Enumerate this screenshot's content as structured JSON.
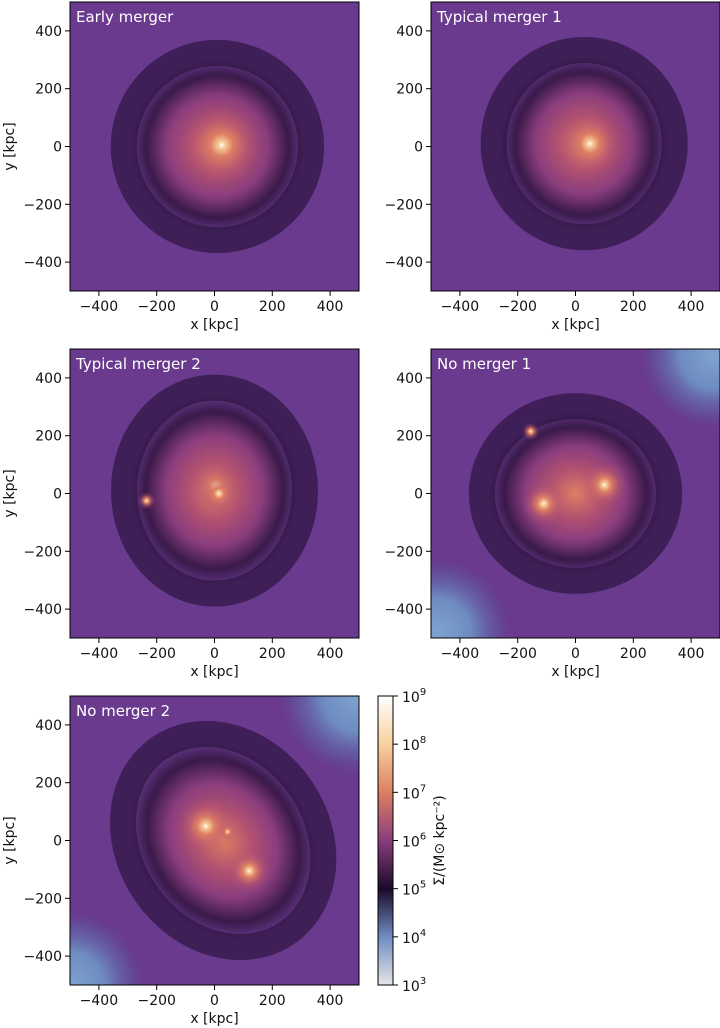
{
  "chart_data": {
    "type": "heatmap",
    "colormap": [
      "#e6e6e6",
      "#6e8cc0",
      "#1a0a2a",
      "#8a3d7d",
      "#dd7f62",
      "#f7d19e",
      "#ffffff"
    ],
    "panels": [
      {
        "title": "Early merger",
        "xlabel": "x [kpc]",
        "ylabel": "y [kpc]",
        "xlim": [
          -500,
          500
        ],
        "ylim": [
          -500,
          500
        ],
        "xticks": [
          -400,
          -200,
          0,
          200,
          400
        ],
        "yticks": [
          -400,
          -200,
          0,
          200,
          400
        ],
        "xtick_labels": [
          "−400",
          "−200",
          "0",
          "200",
          "400"
        ],
        "ytick_labels": [
          "−400",
          "−200",
          "0",
          "200",
          "400"
        ],
        "halo": {
          "cx": 10,
          "cy": 0,
          "rx": 300,
          "ry": 300,
          "angle": 0
        },
        "peaks": [
          {
            "x": 25,
            "y": 5,
            "size": 260
          }
        ],
        "cold_corners": []
      },
      {
        "title": "Typical merger 1",
        "xlabel": "x [kpc]",
        "ylabel": "",
        "xlim": [
          -500,
          500
        ],
        "ylim": [
          -500,
          500
        ],
        "xticks": [
          -400,
          -200,
          0,
          200,
          400
        ],
        "yticks": [
          -400,
          -200,
          0,
          200,
          400
        ],
        "xtick_labels": [
          "−400",
          "−200",
          "0",
          "200",
          "400"
        ],
        "ytick_labels": [
          "−400",
          "−200",
          "0",
          "200",
          "400"
        ],
        "halo": {
          "cx": 30,
          "cy": 10,
          "rx": 290,
          "ry": 300,
          "angle": 0
        },
        "peaks": [
          {
            "x": 50,
            "y": 10,
            "size": 220
          }
        ],
        "cold_corners": []
      },
      {
        "title": "Typical merger 2",
        "xlabel": "x [kpc]",
        "ylabel": "y [kpc]",
        "xlim": [
          -500,
          500
        ],
        "ylim": [
          -500,
          500
        ],
        "xticks": [
          -400,
          -200,
          0,
          200,
          400
        ],
        "yticks": [
          -400,
          -200,
          0,
          200,
          400
        ],
        "xtick_labels": [
          "−400",
          "−200",
          "0",
          "200",
          "400"
        ],
        "ytick_labels": [
          "−400",
          "−200",
          "0",
          "200",
          "400"
        ],
        "halo": {
          "cx": 0,
          "cy": 10,
          "rx": 290,
          "ry": 330,
          "angle": 0
        },
        "peaks": [
          {
            "x": 5,
            "y": 25,
            "size": 150
          },
          {
            "x": 15,
            "y": 0,
            "size": 120
          },
          {
            "x": -235,
            "y": -25,
            "size": 60
          }
        ],
        "cold_corners": []
      },
      {
        "title": "No merger 1",
        "xlabel": "x [kpc]",
        "ylabel": "",
        "xlim": [
          -500,
          500
        ],
        "ylim": [
          -500,
          500
        ],
        "xticks": [
          -400,
          -200,
          0,
          200,
          400
        ],
        "yticks": [
          -400,
          -200,
          0,
          200,
          400
        ],
        "xtick_labels": [
          "−400",
          "−200",
          "0",
          "200",
          "400"
        ],
        "ytick_labels": [
          "−400",
          "−200",
          "0",
          "200",
          "400"
        ],
        "halo": {
          "cx": 0,
          "cy": 0,
          "rx": 300,
          "ry": 280,
          "angle": 0
        },
        "peaks": [
          {
            "x": 100,
            "y": 30,
            "size": 160
          },
          {
            "x": -110,
            "y": -35,
            "size": 150
          },
          {
            "x": -155,
            "y": 215,
            "size": 60
          }
        ],
        "cold_corners": [
          {
            "x": 480,
            "y": 480,
            "r": 260
          },
          {
            "x": -480,
            "y": -480,
            "r": 260
          }
        ]
      },
      {
        "title": "No merger 2",
        "xlabel": "x [kpc]",
        "ylabel": "y [kpc]",
        "xlim": [
          -500,
          500
        ],
        "ylim": [
          -500,
          500
        ],
        "xticks": [
          -400,
          -200,
          0,
          200,
          400
        ],
        "yticks": [
          -400,
          -200,
          0,
          200,
          400
        ],
        "xtick_labels": [
          "−400",
          "−200",
          "0",
          "200",
          "400"
        ],
        "ytick_labels": [
          "−400",
          "−200",
          "0",
          "200",
          "400"
        ],
        "halo": {
          "cx": 30,
          "cy": 0,
          "rx": 300,
          "ry": 360,
          "angle": -35
        },
        "peaks": [
          {
            "x": -30,
            "y": 50,
            "size": 200
          },
          {
            "x": 45,
            "y": 30,
            "size": 60
          },
          {
            "x": 120,
            "y": -105,
            "size": 150
          }
        ],
        "cold_corners": [
          {
            "x": 500,
            "y": 500,
            "r": 280
          },
          {
            "x": -500,
            "y": -500,
            "r": 260
          }
        ]
      }
    ],
    "colorbar": {
      "label": "Σ/(M⊙ kpc⁻²)",
      "scale": "log",
      "range": [
        1000,
        1000000000
      ],
      "ticks": [
        {
          "value": 1000,
          "label_base": "10",
          "label_exp": "3"
        },
        {
          "value": 10000,
          "label_base": "10",
          "label_exp": "4"
        },
        {
          "value": 100000,
          "label_base": "10",
          "label_exp": "5"
        },
        {
          "value": 1000000,
          "label_base": "10",
          "label_exp": "6"
        },
        {
          "value": 10000000,
          "label_base": "10",
          "label_exp": "7"
        },
        {
          "value": 100000000,
          "label_base": "10",
          "label_exp": "8"
        },
        {
          "value": 1000000000,
          "label_base": "10",
          "label_exp": "9"
        }
      ]
    }
  }
}
